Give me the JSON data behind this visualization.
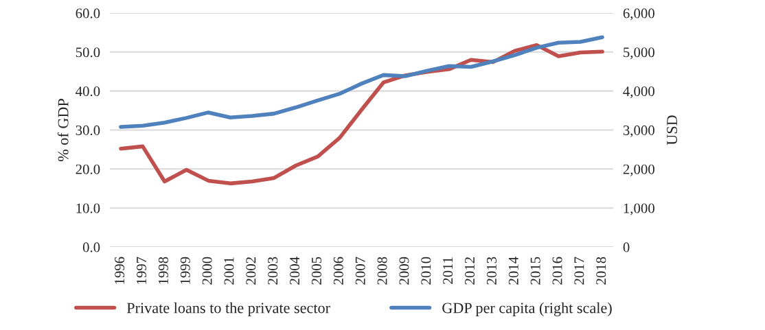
{
  "chart_data": {
    "type": "line",
    "categories": [
      "1996",
      "1997",
      "1998",
      "1999",
      "2000",
      "2001",
      "2002",
      "2003",
      "2004",
      "2005",
      "2006",
      "2007",
      "2008",
      "2009",
      "2010",
      "2011",
      "2012",
      "2013",
      "2014",
      "2015",
      "2016",
      "2017",
      "2018"
    ],
    "series": [
      {
        "name": "Private loans to the private sector",
        "color": "#c0504d",
        "values": [
          25.2,
          25.8,
          16.8,
          19.8,
          17.0,
          16.3,
          16.8,
          17.7,
          20.9,
          23.2,
          28.0,
          35.2,
          42.2,
          44.0,
          44.9,
          45.6,
          48.0,
          47.4,
          50.3,
          51.8,
          48.9,
          49.9,
          50.1
        ]
      },
      {
        "name": "GDP per capita (right scale)",
        "color": "#4f81bd",
        "axis": "y2",
        "values": [
          3080,
          3110,
          3190,
          3310,
          3450,
          3320,
          3360,
          3420,
          3580,
          3760,
          3930,
          4190,
          4410,
          4380,
          4520,
          4640,
          4620,
          4760,
          4920,
          5110,
          5240,
          5260,
          5380
        ]
      }
    ],
    "ylabel": "% of GDP",
    "y2label": "USD",
    "ylim": [
      0,
      60
    ],
    "yticks": [
      {
        "value": 0,
        "label": "0.0"
      },
      {
        "value": 10,
        "label": "10.0"
      },
      {
        "value": 20,
        "label": "20.0"
      },
      {
        "value": 30,
        "label": "30.0"
      },
      {
        "value": 40,
        "label": "40.0"
      },
      {
        "value": 50,
        "label": "50.0"
      },
      {
        "value": 60,
        "label": "60.0"
      }
    ],
    "y2lim": [
      0,
      6000
    ],
    "y2ticks": [
      0,
      {
        "value": 1000,
        "label": "1,000"
      },
      {
        "value": 2000,
        "label": "2,000"
      },
      {
        "value": 3000,
        "label": "3,000"
      },
      {
        "value": 4000,
        "label": "4,000"
      },
      {
        "value": 5000,
        "label": "5,000"
      },
      {
        "value": 6000,
        "label": "6,000"
      }
    ],
    "grid": "y",
    "legend": "bottom",
    "marker": "none",
    "line_style": "solid"
  }
}
